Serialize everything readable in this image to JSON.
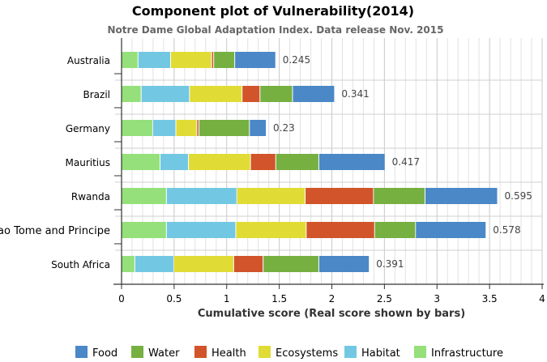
{
  "chart_data": {
    "type": "bar",
    "orientation": "horizontal",
    "stacked": true,
    "title": "Component plot of Vulnerability(2014)",
    "subtitle": "Notre Dame Global Adaptation Index. Data release Nov. 2015",
    "xlabel": "Cumulative score (Real score shown by bars)",
    "ylabel": "",
    "xlim": [
      0,
      4
    ],
    "xticks": [
      "0",
      "0.5",
      "1",
      "1.5",
      "2",
      "2.5",
      "3",
      "3.5",
      "4"
    ],
    "grid": true,
    "legend_placement": "bottom",
    "categories": [
      "Australia",
      "Brazil",
      "Germany",
      "Mauritius",
      "Rwanda",
      "Sao Tome and Principe",
      "South Africa"
    ],
    "bar_labels": [
      "0.245",
      "0.341",
      "0.23",
      "0.417",
      "0.595",
      "0.578",
      "0.391"
    ],
    "series": [
      {
        "name": "Infrastructure",
        "color": "#95e07a",
        "values": [
          0.16,
          0.19,
          0.3,
          0.37,
          0.43,
          0.43,
          0.13
        ]
      },
      {
        "name": "Habitat",
        "color": "#72c8e2",
        "values": [
          0.31,
          0.46,
          0.22,
          0.27,
          0.67,
          0.66,
          0.37
        ]
      },
      {
        "name": "Ecosystems",
        "color": "#e0dc35",
        "values": [
          0.39,
          0.5,
          0.2,
          0.59,
          0.65,
          0.67,
          0.57
        ]
      },
      {
        "name": "Health",
        "color": "#d2542a",
        "values": [
          0.02,
          0.17,
          0.02,
          0.24,
          0.65,
          0.65,
          0.28
        ]
      },
      {
        "name": "Water",
        "color": "#76b041",
        "values": [
          0.2,
          0.31,
          0.48,
          0.41,
          0.49,
          0.39,
          0.53
        ]
      },
      {
        "name": "Food",
        "color": "#4a88c7",
        "values": [
          0.39,
          0.4,
          0.16,
          0.63,
          0.69,
          0.67,
          0.48
        ]
      }
    ],
    "legend_order": [
      "Food",
      "Water",
      "Health",
      "Ecosystems",
      "Habitat",
      "Infrastructure"
    ]
  }
}
